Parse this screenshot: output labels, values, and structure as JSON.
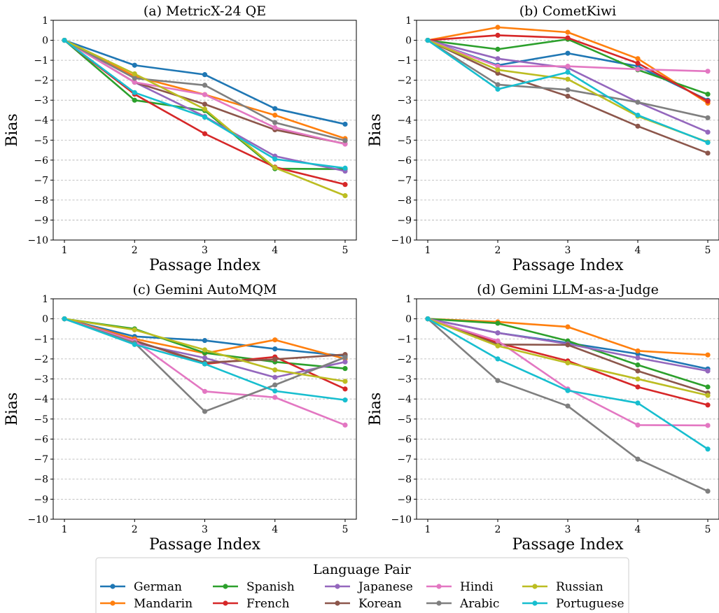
{
  "chart_data": [
    {
      "type": "line",
      "title": "(a) MetricX-24 QE",
      "xlabel": "Passage Index",
      "ylabel": "Bias",
      "x": [
        1,
        2,
        3,
        4,
        5
      ],
      "ylim": [
        -10,
        1
      ],
      "yticks": [
        1,
        0,
        -1,
        -2,
        -3,
        -4,
        -5,
        -6,
        -7,
        -8,
        -9,
        -10
      ],
      "ytick_labels": [
        "1",
        "0",
        "−1",
        "−2",
        "−3",
        "−4",
        "−5",
        "−6",
        "−7",
        "−8",
        "−9",
        "−10"
      ],
      "xtick_labels": [
        "1",
        "2",
        "3",
        "4",
        "5"
      ],
      "grid": "horizontal dashed",
      "series": [
        {
          "name": "German",
          "values": [
            0,
            -1.25,
            -1.72,
            -3.42,
            -4.2
          ]
        },
        {
          "name": "Mandarin",
          "values": [
            0,
            -1.8,
            -2.72,
            -3.75,
            -4.92
          ]
        },
        {
          "name": "Spanish",
          "values": [
            0,
            -3.0,
            -3.52,
            -6.43,
            -6.45
          ]
        },
        {
          "name": "French",
          "values": [
            0,
            -2.7,
            -4.68,
            -6.35,
            -7.22
          ]
        },
        {
          "name": "Japanese",
          "values": [
            0,
            -2.1,
            -3.82,
            -5.8,
            -6.55
          ]
        },
        {
          "name": "Korean",
          "values": [
            0,
            -2.1,
            -3.2,
            -4.48,
            -5.18
          ]
        },
        {
          "name": "Hindi",
          "values": [
            0,
            -2.1,
            -2.72,
            -4.37,
            -5.2
          ]
        },
        {
          "name": "Arabic",
          "values": [
            0,
            -1.9,
            -2.25,
            -4.12,
            -5.02
          ]
        },
        {
          "name": "Russian",
          "values": [
            0,
            -1.68,
            -3.45,
            -6.38,
            -7.78
          ]
        },
        {
          "name": "Portuguese",
          "values": [
            0,
            -2.62,
            -3.85,
            -5.95,
            -6.4
          ]
        }
      ]
    },
    {
      "type": "line",
      "title": "(b) CometKiwi",
      "xlabel": "Passage Index",
      "ylabel": "Bias",
      "x": [
        1,
        2,
        3,
        4,
        5
      ],
      "ylim": [
        -10,
        1
      ],
      "yticks": [
        1,
        0,
        -1,
        -2,
        -3,
        -4,
        -5,
        -6,
        -7,
        -8,
        -9,
        -10
      ],
      "ytick_labels": [
        "1",
        "0",
        "−1",
        "−2",
        "−3",
        "−4",
        "−5",
        "−6",
        "−7",
        "−8",
        "−9",
        "−10"
      ],
      "xtick_labels": [
        "1",
        "2",
        "3",
        "4",
        "5"
      ],
      "grid": "horizontal dashed",
      "series": [
        {
          "name": "German",
          "values": [
            0,
            -1.25,
            -0.65,
            -1.3,
            -3.0
          ]
        },
        {
          "name": "Mandarin",
          "values": [
            0,
            0.65,
            0.4,
            -0.92,
            -3.15
          ]
        },
        {
          "name": "Spanish",
          "values": [
            0,
            -0.45,
            0.05,
            -1.48,
            -2.7
          ]
        },
        {
          "name": "French",
          "values": [
            0,
            0.25,
            0.12,
            -1.15,
            -3.05
          ]
        },
        {
          "name": "Japanese",
          "values": [
            0,
            -0.92,
            -1.38,
            -3.1,
            -4.6
          ]
        },
        {
          "name": "Korean",
          "values": [
            0,
            -1.65,
            -2.8,
            -4.3,
            -5.65
          ]
        },
        {
          "name": "Hindi",
          "values": [
            0,
            -1.3,
            -1.3,
            -1.45,
            -1.55
          ]
        },
        {
          "name": "Arabic",
          "values": [
            0,
            -2.22,
            -2.48,
            -3.1,
            -3.88
          ]
        },
        {
          "name": "Russian",
          "values": [
            0,
            -1.48,
            -1.95,
            -3.8,
            -5.1
          ]
        },
        {
          "name": "Portuguese",
          "values": [
            0,
            -2.45,
            -1.6,
            -3.75,
            -5.12
          ]
        }
      ]
    },
    {
      "type": "line",
      "title": "(c) Gemini AutoMQM",
      "xlabel": "Passage Index",
      "ylabel": "Bias",
      "x": [
        1,
        2,
        3,
        4,
        5
      ],
      "ylim": [
        -10,
        1
      ],
      "yticks": [
        1,
        0,
        -1,
        -2,
        -3,
        -4,
        -5,
        -6,
        -7,
        -8,
        -9,
        -10
      ],
      "ytick_labels": [
        "1",
        "0",
        "−1",
        "−2",
        "−3",
        "−4",
        "−5",
        "−6",
        "−7",
        "−8",
        "−9",
        "−10"
      ],
      "xtick_labels": [
        "1",
        "2",
        "3",
        "4",
        "5"
      ],
      "grid": "horizontal dashed",
      "series": [
        {
          "name": "German",
          "values": [
            0,
            -0.88,
            -1.08,
            -1.5,
            -1.85
          ]
        },
        {
          "name": "Mandarin",
          "values": [
            0,
            -1.0,
            -1.72,
            -1.05,
            -2.0
          ]
        },
        {
          "name": "Spanish",
          "values": [
            0,
            -0.5,
            -1.7,
            -2.15,
            -2.48
          ]
        },
        {
          "name": "French",
          "values": [
            0,
            -1.08,
            -2.25,
            -1.9,
            -3.5
          ]
        },
        {
          "name": "Japanese",
          "values": [
            0,
            -1.2,
            -1.95,
            -2.92,
            -2.15
          ]
        },
        {
          "name": "Korean",
          "values": [
            0,
            -1.1,
            -2.18,
            -2.02,
            -1.78
          ]
        },
        {
          "name": "Hindi",
          "values": [
            0,
            -1.1,
            -3.62,
            -3.92,
            -5.3
          ]
        },
        {
          "name": "Arabic",
          "values": [
            0,
            -1.2,
            -4.62,
            -3.3,
            -1.92
          ]
        },
        {
          "name": "Russian",
          "values": [
            0,
            -0.55,
            -1.55,
            -2.55,
            -3.12
          ]
        },
        {
          "name": "Portuguese",
          "values": [
            0,
            -1.28,
            -2.25,
            -3.6,
            -4.05
          ]
        }
      ]
    },
    {
      "type": "line",
      "title": "(d) Gemini LLM-as-a-Judge",
      "xlabel": "Passage Index",
      "ylabel": "Bias",
      "x": [
        1,
        2,
        3,
        4,
        5
      ],
      "ylim": [
        -10,
        1
      ],
      "yticks": [
        1,
        0,
        -1,
        -2,
        -3,
        -4,
        -5,
        -6,
        -7,
        -8,
        -9,
        -10
      ],
      "ytick_labels": [
        "1",
        "0",
        "−1",
        "−2",
        "−3",
        "−4",
        "−5",
        "−6",
        "−7",
        "−8",
        "−9",
        "−10"
      ],
      "xtick_labels": [
        "1",
        "2",
        "3",
        "4",
        "5"
      ],
      "grid": "horizontal dashed",
      "series": [
        {
          "name": "German",
          "values": [
            0,
            -0.7,
            -1.2,
            -1.75,
            -2.5
          ]
        },
        {
          "name": "Mandarin",
          "values": [
            0,
            -0.15,
            -0.4,
            -1.6,
            -1.8
          ]
        },
        {
          "name": "Spanish",
          "values": [
            0,
            -0.22,
            -1.1,
            -2.3,
            -3.4
          ]
        },
        {
          "name": "French",
          "values": [
            0,
            -1.2,
            -2.1,
            -3.4,
            -4.3
          ]
        },
        {
          "name": "Japanese",
          "values": [
            0,
            -0.7,
            -1.25,
            -1.95,
            -2.6
          ]
        },
        {
          "name": "Korean",
          "values": [
            0,
            -1.28,
            -1.3,
            -2.6,
            -3.7
          ]
        },
        {
          "name": "Hindi",
          "values": [
            0,
            -1.1,
            -3.5,
            -5.3,
            -5.32
          ]
        },
        {
          "name": "Arabic",
          "values": [
            0,
            -3.08,
            -4.35,
            -7.0,
            -8.6
          ]
        },
        {
          "name": "Russian",
          "values": [
            0,
            -1.35,
            -2.2,
            -3.0,
            -3.82
          ]
        },
        {
          "name": "Portuguese",
          "values": [
            0,
            -2.0,
            -3.58,
            -4.2,
            -6.5
          ]
        }
      ]
    }
  ],
  "legend": {
    "title": "Language Pair",
    "entries": [
      {
        "name": "German",
        "color": "#1f77b4"
      },
      {
        "name": "Mandarin",
        "color": "#ff7f0e"
      },
      {
        "name": "Spanish",
        "color": "#2ca02c"
      },
      {
        "name": "French",
        "color": "#d62728"
      },
      {
        "name": "Japanese",
        "color": "#9467bd"
      },
      {
        "name": "Korean",
        "color": "#8c564b"
      },
      {
        "name": "Hindi",
        "color": "#e377c2"
      },
      {
        "name": "Arabic",
        "color": "#7f7f7f"
      },
      {
        "name": "Russian",
        "color": "#bcbd22"
      },
      {
        "name": "Portuguese",
        "color": "#17becf"
      }
    ],
    "placement": "bottom-center",
    "columns": 5
  }
}
